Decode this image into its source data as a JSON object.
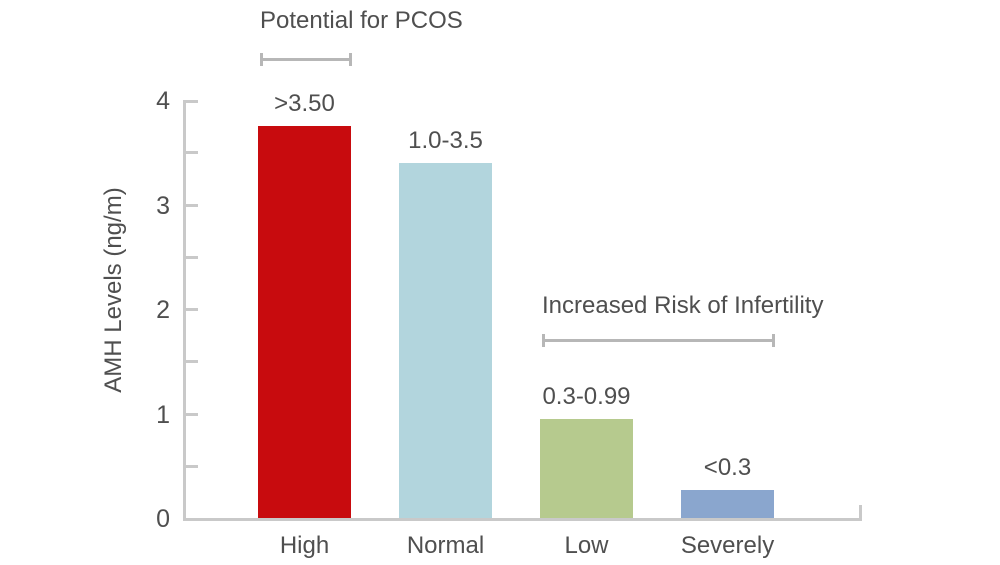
{
  "chart_data": {
    "type": "bar",
    "title": "",
    "xlabel": "",
    "ylabel": "AMH Levels (ng/m)",
    "ylim": [
      0,
      4
    ],
    "ytick_labels": [
      "0",
      "1",
      "2",
      "3",
      "4"
    ],
    "ytick_minor_step": 0.5,
    "grid": false,
    "legend": "none",
    "categories": [
      "High",
      "Normal",
      "Low",
      "Severely"
    ],
    "values": [
      3.75,
      3.4,
      0.95,
      0.27
    ],
    "value_labels": [
      ">3.50",
      "1.0-3.5",
      "0.3-0.99",
      "<0.3"
    ],
    "bar_colors": [
      "#c80b0e",
      "#b2d5dd",
      "#b6ca8e",
      "#8aa6ce"
    ],
    "annotations": [
      {
        "text": "Potential for PCOS",
        "from_category": 0,
        "to_category": 0
      },
      {
        "text": "Increased Risk of Infertility",
        "from_category": 2,
        "to_category": 3
      }
    ]
  },
  "colors": {
    "axis": "#c9c9c9",
    "bracket": "#b7b7b7",
    "text": "#4f4f4f",
    "background": "#ffffff"
  }
}
